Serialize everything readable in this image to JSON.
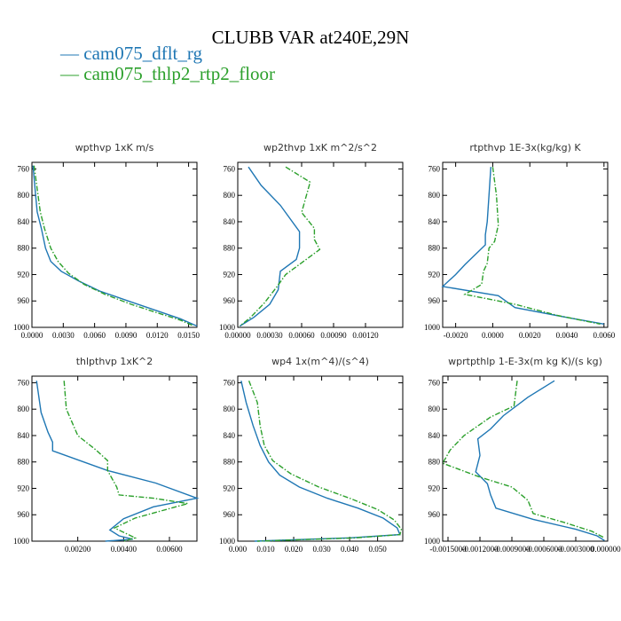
{
  "title": "CLUBB VAR at240E,29N",
  "legend": [
    {
      "label": "— cam075_dflt_rg",
      "color": "#1f77b4"
    },
    {
      "label": "— cam075_thlp2_rtp2_floor",
      "color": "#2ca02c"
    }
  ],
  "chart_data": [
    {
      "type": "line",
      "title": "wpthvp   1xK m/s",
      "xlim": [
        0,
        0.0158
      ],
      "ylim": [
        1000,
        750
      ],
      "xticks": [
        0,
        0.003,
        0.006,
        0.009,
        0.012,
        0.015
      ],
      "xtick_labels": [
        "0.0000",
        "0.0030",
        "0.0060",
        "0.0090",
        "0.0120",
        "0.0150"
      ],
      "yticks": [
        760,
        800,
        840,
        880,
        920,
        960,
        1000
      ],
      "series": [
        {
          "name": "cam075_dflt_rg",
          "color": "#1f77b4",
          "dashed": false,
          "points": [
            [
              0.0001,
              755
            ],
            [
              0.0003,
              790
            ],
            [
              0.0005,
              825
            ],
            [
              0.0009,
              850
            ],
            [
              0.0013,
              880
            ],
            [
              0.0018,
              900
            ],
            [
              0.0028,
              915
            ],
            [
              0.0045,
              930
            ],
            [
              0.0065,
              945
            ],
            [
              0.0092,
              960
            ],
            [
              0.012,
              975
            ],
            [
              0.0142,
              987
            ],
            [
              0.0158,
              998
            ]
          ]
        },
        {
          "name": "cam075_thlp2_rtp2_floor",
          "color": "#2ca02c",
          "dashed": true,
          "points": [
            [
              0.0002,
              755
            ],
            [
              0.0005,
              790
            ],
            [
              0.0008,
              825
            ],
            [
              0.0012,
              850
            ],
            [
              0.0018,
              880
            ],
            [
              0.0025,
              900
            ],
            [
              0.0035,
              918
            ],
            [
              0.005,
              935
            ],
            [
              0.007,
              950
            ],
            [
              0.0095,
              965
            ],
            [
              0.012,
              978
            ],
            [
              0.0142,
              989
            ],
            [
              0.0155,
              998
            ]
          ]
        }
      ]
    },
    {
      "type": "line",
      "title": "wp2thvp   1xK m^2/s^2",
      "xlim": [
        0,
        0.00155
      ],
      "ylim": [
        1000,
        750
      ],
      "xticks": [
        0,
        0.0003,
        0.0006,
        0.0009,
        0.0012
      ],
      "xtick_labels": [
        "0.00000",
        "0.00030",
        "0.00060",
        "0.00090",
        "0.00120"
      ],
      "yticks": [
        760,
        800,
        840,
        880,
        920,
        960,
        1000
      ],
      "series": [
        {
          "name": "cam075_dflt_rg",
          "color": "#1f77b4",
          "dashed": false,
          "points": [
            [
              0.0001,
              757
            ],
            [
              0.00022,
              785
            ],
            [
              0.0004,
              815
            ],
            [
              0.00058,
              855
            ],
            [
              0.00058,
              880
            ],
            [
              0.00055,
              897
            ],
            [
              0.0004,
              915
            ],
            [
              0.00038,
              943
            ],
            [
              0.0003,
              965
            ],
            [
              0.00015,
              985
            ],
            [
              2e-05,
              998
            ]
          ]
        },
        {
          "name": "cam075_thlp2_rtp2_floor",
          "color": "#2ca02c",
          "dashed": true,
          "points": [
            [
              0.00045,
              757
            ],
            [
              0.00068,
              780
            ],
            [
              0.0006,
              826
            ],
            [
              0.00072,
              850
            ],
            [
              0.00072,
              867
            ],
            [
              0.00077,
              882
            ],
            [
              0.00045,
              920
            ],
            [
              0.00037,
              938
            ],
            [
              0.00025,
              963
            ],
            [
              0.00012,
              985
            ],
            [
              2e-05,
              998
            ]
          ]
        }
      ]
    },
    {
      "type": "line",
      "title": "rtpthvp   1E-3x(kg/kg) K",
      "xlim": [
        -0.0027,
        0.0062
      ],
      "ylim": [
        1000,
        750
      ],
      "xticks": [
        -0.002,
        0,
        0.002,
        0.004,
        0.006
      ],
      "xtick_labels": [
        "-0.0020",
        "0.0000",
        "0.0020",
        "0.0040",
        "0.0060"
      ],
      "yticks": [
        760,
        800,
        840,
        880,
        920,
        960,
        1000
      ],
      "series": [
        {
          "name": "cam075_dflt_rg",
          "color": "#1f77b4",
          "dashed": false,
          "points": [
            [
              -0.0001,
              757
            ],
            [
              -0.0002,
              800
            ],
            [
              -0.0003,
              840
            ],
            [
              -0.0004,
              860
            ],
            [
              -0.0004,
              875
            ],
            [
              -0.0015,
              905
            ],
            [
              -0.002,
              920
            ],
            [
              -0.0027,
              938
            ],
            [
              0.0003,
              952
            ],
            [
              0.0012,
              970
            ],
            [
              0.004,
              985
            ],
            [
              0.006,
              995
            ]
          ]
        },
        {
          "name": "cam075_thlp2_rtp2_floor",
          "color": "#2ca02c",
          "dashed": true,
          "points": [
            [
              0,
              757
            ],
            [
              0.0002,
              800
            ],
            [
              0.0003,
              845
            ],
            [
              0.0001,
              870
            ],
            [
              -0.0002,
              880
            ],
            [
              -0.0003,
              903
            ],
            [
              -0.0005,
              915
            ],
            [
              -0.0006,
              935
            ],
            [
              -0.0015,
              950
            ],
            [
              0.0012,
              965
            ],
            [
              0.0035,
              982
            ],
            [
              0.0058,
              995
            ]
          ]
        }
      ]
    },
    {
      "type": "line",
      "title": "thlpthvp   1xK^2",
      "xlim": [
        0,
        0.0072
      ],
      "ylim": [
        1000,
        750
      ],
      "xticks": [
        0.002,
        0.004,
        0.006
      ],
      "xtick_labels": [
        "0.00200",
        "0.00400",
        "0.00600"
      ],
      "yticks": [
        760,
        800,
        840,
        880,
        920,
        960,
        1000
      ],
      "series": [
        {
          "name": "cam075_dflt_rg",
          "color": "#1f77b4",
          "dashed": false,
          "points": [
            [
              0.0002,
              757
            ],
            [
              0.0004,
              805
            ],
            [
              0.0007,
              835
            ],
            [
              0.0009,
              850
            ],
            [
              0.0009,
              863
            ],
            [
              0.0033,
              893
            ],
            [
              0.0054,
              912
            ],
            [
              0.0072,
              935
            ],
            [
              0.0053,
              948
            ],
            [
              0.004,
              966
            ],
            [
              0.0034,
              983
            ],
            [
              0.0038,
              992
            ],
            [
              0.0044,
              997
            ],
            [
              0.0032,
              1000
            ]
          ]
        },
        {
          "name": "cam075_thlp2_rtp2_floor",
          "color": "#2ca02c",
          "dashed": true,
          "points": [
            [
              0.0014,
              757
            ],
            [
              0.0015,
              800
            ],
            [
              0.002,
              840
            ],
            [
              0.0028,
              862
            ],
            [
              0.0033,
              878
            ],
            [
              0.0033,
              893
            ],
            [
              0.0037,
              918
            ],
            [
              0.0038,
              930
            ],
            [
              0.0053,
              935
            ],
            [
              0.0068,
              943
            ],
            [
              0.0045,
              965
            ],
            [
              0.0036,
              980
            ],
            [
              0.0045,
              995
            ],
            [
              0.004,
              1000
            ]
          ]
        }
      ]
    },
    {
      "type": "line",
      "title": "wp4   1x(m^4)/(s^4)",
      "xlim": [
        0,
        0.059
      ],
      "ylim": [
        1000,
        750
      ],
      "xticks": [
        0,
        0.01,
        0.02,
        0.03,
        0.04,
        0.05
      ],
      "xtick_labels": [
        "0.000",
        "0.010",
        "0.020",
        "0.030",
        "0.040",
        "0.050"
      ],
      "yticks": [
        760,
        800,
        840,
        880,
        920,
        960,
        1000
      ],
      "series": [
        {
          "name": "cam075_dflt_rg",
          "color": "#1f77b4",
          "dashed": false,
          "points": [
            [
              0.0012,
              757
            ],
            [
              0.003,
              790
            ],
            [
              0.0055,
              825
            ],
            [
              0.008,
              855
            ],
            [
              0.011,
              880
            ],
            [
              0.015,
              900
            ],
            [
              0.022,
              918
            ],
            [
              0.032,
              935
            ],
            [
              0.043,
              950
            ],
            [
              0.052,
              965
            ],
            [
              0.057,
              980
            ],
            [
              0.058,
              990
            ],
            [
              0.04,
              995
            ],
            [
              0.006,
              1000
            ]
          ]
        },
        {
          "name": "cam075_thlp2_rtp2_floor",
          "color": "#2ca02c",
          "dashed": true,
          "points": [
            [
              0.004,
              757
            ],
            [
              0.007,
              790
            ],
            [
              0.008,
              825
            ],
            [
              0.0095,
              855
            ],
            [
              0.0125,
              878
            ],
            [
              0.019,
              898
            ],
            [
              0.029,
              918
            ],
            [
              0.04,
              935
            ],
            [
              0.05,
              952
            ],
            [
              0.056,
              968
            ],
            [
              0.0585,
              982
            ],
            [
              0.058,
              990
            ],
            [
              0.042,
              995
            ],
            [
              0.007,
              1000
            ]
          ]
        }
      ]
    },
    {
      "type": "line",
      "title": "wprtpthlp   1-E-3x(m kg K)/(s kg)",
      "xlim": [
        -0.00155,
        0.0
      ],
      "ylim": [
        1000,
        750
      ],
      "xticks": [
        -0.0015,
        -0.0012,
        -0.0009,
        -0.0006,
        -0.0003,
        0
      ],
      "xtick_labels": [
        "-0.0015000",
        "-0.0012000",
        "-0.0009000",
        "-0.0006000",
        "-0.0003000",
        "0.0000000"
      ],
      "yticks": [
        760,
        800,
        840,
        880,
        920,
        960,
        1000
      ],
      "series": [
        {
          "name": "cam075_dflt_rg",
          "color": "#1f77b4",
          "dashed": false,
          "points": [
            [
              -0.0005,
              757
            ],
            [
              -0.00075,
              782
            ],
            [
              -0.00098,
              810
            ],
            [
              -0.0011,
              830
            ],
            [
              -0.00122,
              845
            ],
            [
              -0.0012,
              870
            ],
            [
              -0.00124,
              895
            ],
            [
              -0.00113,
              913
            ],
            [
              -0.0011,
              930
            ],
            [
              -0.00105,
              950
            ],
            [
              -0.0007,
              967
            ],
            [
              -0.0003,
              982
            ],
            [
              -0.0001,
              992
            ],
            [
              -3e-05,
              999
            ]
          ]
        },
        {
          "name": "cam075_thlp2_rtp2_floor",
          "color": "#2ca02c",
          "dashed": true,
          "points": [
            [
              -0.00085,
              757
            ],
            [
              -0.00088,
              795
            ],
            [
              -0.0011,
              812
            ],
            [
              -0.00135,
              840
            ],
            [
              -0.00148,
              862
            ],
            [
              -0.00155,
              882
            ],
            [
              -0.0012,
              903
            ],
            [
              -0.0009,
              918
            ],
            [
              -0.00075,
              938
            ],
            [
              -0.0007,
              958
            ],
            [
              -0.0004,
              972
            ],
            [
              -0.00015,
              985
            ],
            [
              -3e-05,
              995
            ]
          ]
        }
      ]
    }
  ]
}
